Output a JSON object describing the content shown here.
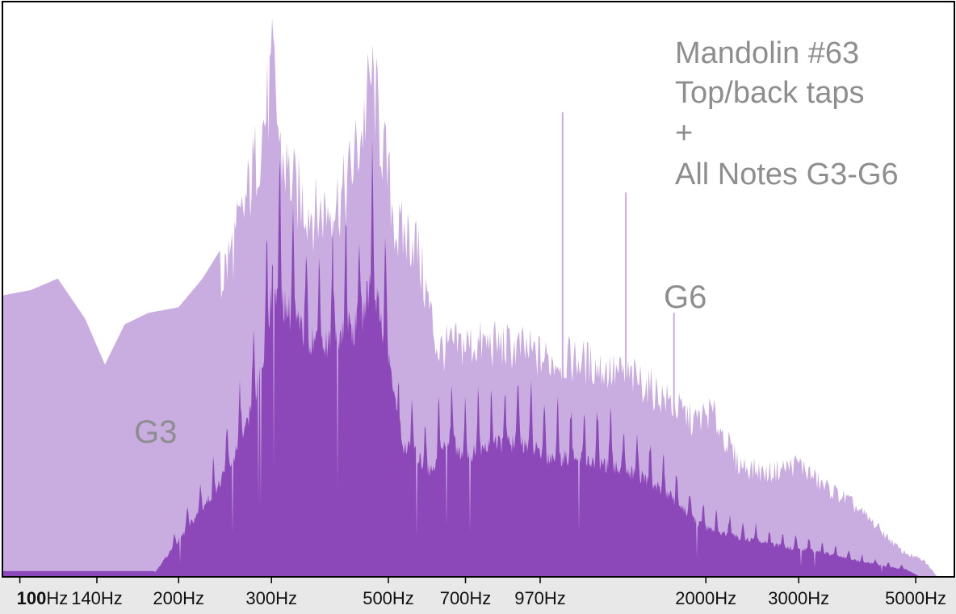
{
  "chart_data": {
    "type": "area",
    "title": "",
    "xlabel": "",
    "ylabel": "",
    "x_scale": "log",
    "xlim": [
      93,
      5900
    ],
    "ylim": [
      0,
      1
    ],
    "grid": false,
    "tick_labels": [
      {
        "hz": 100,
        "number": "100",
        "unit": "Hz"
      },
      {
        "hz": 140,
        "label": "140Hz"
      },
      {
        "hz": 200,
        "label": "200Hz"
      },
      {
        "hz": 300,
        "label": "300Hz"
      },
      {
        "hz": 500,
        "label": "500Hz"
      },
      {
        "hz": 700,
        "label": "700Hz"
      },
      {
        "hz": 970,
        "label": "970Hz"
      },
      {
        "hz": 2000,
        "label": "2000Hz"
      },
      {
        "hz": 3000,
        "label": "3000Hz"
      },
      {
        "hz": 5000,
        "label": "5000Hz"
      }
    ],
    "series": [
      {
        "color": "#c9ace0",
        "envelope": [
          [
            92,
            0.49
          ],
          [
            105,
            0.5
          ],
          [
            118,
            0.52
          ],
          [
            133,
            0.45
          ],
          [
            145,
            0.37
          ],
          [
            158,
            0.44
          ],
          [
            175,
            0.46
          ],
          [
            200,
            0.47
          ],
          [
            222,
            0.52
          ],
          [
            240,
            0.57
          ],
          [
            262,
            0.68
          ],
          [
            282,
            0.82
          ],
          [
            296,
            0.92
          ],
          [
            302,
            0.99
          ],
          [
            312,
            0.82
          ],
          [
            335,
            0.74
          ],
          [
            365,
            0.7
          ],
          [
            390,
            0.72
          ],
          [
            412,
            0.74
          ],
          [
            445,
            0.86
          ],
          [
            465,
            0.97
          ],
          [
            490,
            0.82
          ],
          [
            520,
            0.66
          ],
          [
            560,
            0.66
          ],
          [
            590,
            0.55
          ],
          [
            620,
            0.44
          ],
          [
            700,
            0.45
          ],
          [
            800,
            0.45
          ],
          [
            900,
            0.44
          ],
          [
            1000,
            0.42
          ],
          [
            1150,
            0.42
          ],
          [
            1300,
            0.4
          ],
          [
            1500,
            0.38
          ],
          [
            1700,
            0.34
          ],
          [
            1900,
            0.3
          ],
          [
            2050,
            0.32
          ],
          [
            2300,
            0.22
          ],
          [
            2600,
            0.2
          ],
          [
            3000,
            0.22
          ],
          [
            3300,
            0.18
          ],
          [
            3700,
            0.15
          ],
          [
            4200,
            0.1
          ],
          [
            4700,
            0.05
          ],
          [
            5200,
            0.03
          ],
          [
            5500,
            0.0
          ]
        ],
        "spikes": [
          [
            1070,
            0.81
          ],
          [
            1410,
            0.67
          ],
          [
            1740,
            0.46
          ]
        ]
      },
      {
        "color": "#8c47b8",
        "harmonic_fundamentals_hz": [
          196,
          207.7,
          220,
          233.1,
          246.9,
          261.6,
          277.2,
          293.7,
          311.1,
          329.6,
          349.2,
          370,
          392,
          415.3,
          440,
          466.2,
          493.9,
          523.3,
          554.4,
          587.3,
          622.3,
          659.3,
          698.5,
          740,
          784,
          830.6,
          880,
          932.3,
          987.8,
          1046.5,
          1108.7,
          1174.7,
          1244.5,
          1318.5,
          1396.9,
          1480,
          1568
        ],
        "envelope": [
          [
            93,
            0.01
          ],
          [
            180,
            0.01
          ],
          [
            240,
            0.25
          ],
          [
            270,
            0.4
          ],
          [
            290,
            0.58
          ],
          [
            302,
            0.8
          ],
          [
            320,
            0.72
          ],
          [
            345,
            0.65
          ],
          [
            380,
            0.62
          ],
          [
            415,
            0.67
          ],
          [
            440,
            0.66
          ],
          [
            465,
            0.8
          ],
          [
            480,
            0.72
          ],
          [
            505,
            0.56
          ],
          [
            525,
            0.36
          ],
          [
            560,
            0.33
          ],
          [
            600,
            0.28
          ],
          [
            650,
            0.37
          ],
          [
            700,
            0.32
          ],
          [
            780,
            0.35
          ],
          [
            900,
            0.36
          ],
          [
            1000,
            0.32
          ],
          [
            1100,
            0.32
          ],
          [
            1300,
            0.3
          ],
          [
            1500,
            0.27
          ],
          [
            1700,
            0.22
          ],
          [
            1900,
            0.15
          ],
          [
            2100,
            0.12
          ],
          [
            2400,
            0.1
          ],
          [
            2800,
            0.08
          ],
          [
            3200,
            0.07
          ],
          [
            3700,
            0.05
          ],
          [
            4300,
            0.03
          ],
          [
            4800,
            0.02
          ],
          [
            5100,
            0.0
          ]
        ]
      }
    ],
    "annotations": {
      "legend_title": [
        "Mandolin #63",
        "Top/back taps",
        "+",
        "All Notes G3-G6"
      ],
      "g3_label": "G3",
      "g6_label": "G6"
    }
  }
}
